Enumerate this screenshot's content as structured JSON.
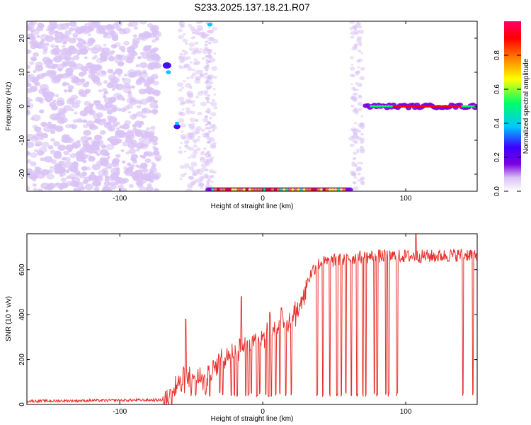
{
  "title": "S233.2025.137.18.21.R07",
  "chart_data": [
    {
      "type": "heatmap",
      "xlabel": "Height of straight line (km)",
      "ylabel": "Frequency (Hz)",
      "xlim": [
        -165,
        150
      ],
      "ylim": [
        -25,
        25
      ],
      "xticks": [
        -100,
        0,
        100
      ],
      "yticks": [
        -20,
        -10,
        0,
        10,
        20
      ],
      "colorbar": {
        "label": "Normalized spectral amplitude",
        "range": [
          0,
          1
        ],
        "ticks": [
          "0.0",
          "0.2",
          "0.4",
          "0.6",
          "0.8"
        ],
        "colormap": [
          "#ffffff",
          "#d9c2f5",
          "#7a00e0",
          "#3c00ff",
          "#00c8ff",
          "#00ff66",
          "#ffff00",
          "#ff8000",
          "#ff0000",
          "#ff0066"
        ]
      },
      "features": [
        {
          "name": "noise",
          "x": [
            -165,
            -75
          ],
          "y": [
            -25,
            25
          ],
          "amplitude": 0.2
        },
        {
          "name": "blob",
          "x": [
            -68,
            -64
          ],
          "y": [
            8,
            15
          ],
          "amplitude": 0.4
        },
        {
          "name": "blob",
          "x": [
            -62,
            -58
          ],
          "y": [
            -8,
            -3
          ],
          "amplitude": 0.4
        },
        {
          "name": "bottom-band",
          "x": [
            -38,
            62
          ],
          "y": [
            -25,
            -23
          ],
          "amplitude": 0.9
        },
        {
          "name": "right-line",
          "x": [
            72,
            150
          ],
          "y": [
            -1,
            1
          ],
          "amplitude": 0.8
        }
      ]
    },
    {
      "type": "line",
      "xlabel": "Height of straight line (km)",
      "ylabel": "SNR (10 * v/v)",
      "xlim": [
        -165,
        150
      ],
      "ylim": [
        0,
        760
      ],
      "xticks": [
        -100,
        0,
        100
      ],
      "yticks": [
        0,
        200,
        400,
        600
      ],
      "series_color": "#e8312d",
      "envelope": {
        "x": [
          -165,
          -70,
          -65,
          -60,
          -50,
          -40,
          -30,
          -20,
          -10,
          0,
          10,
          20,
          25,
          30,
          35,
          40,
          60,
          80,
          100,
          120,
          150
        ],
        "y": [
          15,
          20,
          50,
          120,
          160,
          140,
          220,
          270,
          300,
          330,
          370,
          410,
          450,
          530,
          600,
          630,
          650,
          660,
          660,
          660,
          670
        ]
      },
      "dips": [
        -50,
        -47,
        -40,
        -37,
        -30,
        -28,
        -22,
        -20,
        -18,
        -12,
        -10,
        -8,
        -4,
        -2,
        2,
        4,
        6,
        9,
        12,
        16,
        20,
        38,
        42,
        47,
        52,
        55,
        58,
        62,
        66,
        70,
        72,
        78,
        80,
        86,
        88,
        94,
        140,
        147
      ],
      "peaks": [
        {
          "x": -54,
          "y": 380
        },
        {
          "x": -15,
          "y": 480
        },
        {
          "x": 5,
          "y": 410
        },
        {
          "x": 13,
          "y": 430
        },
        {
          "x": 107,
          "y": 760
        }
      ]
    }
  ]
}
